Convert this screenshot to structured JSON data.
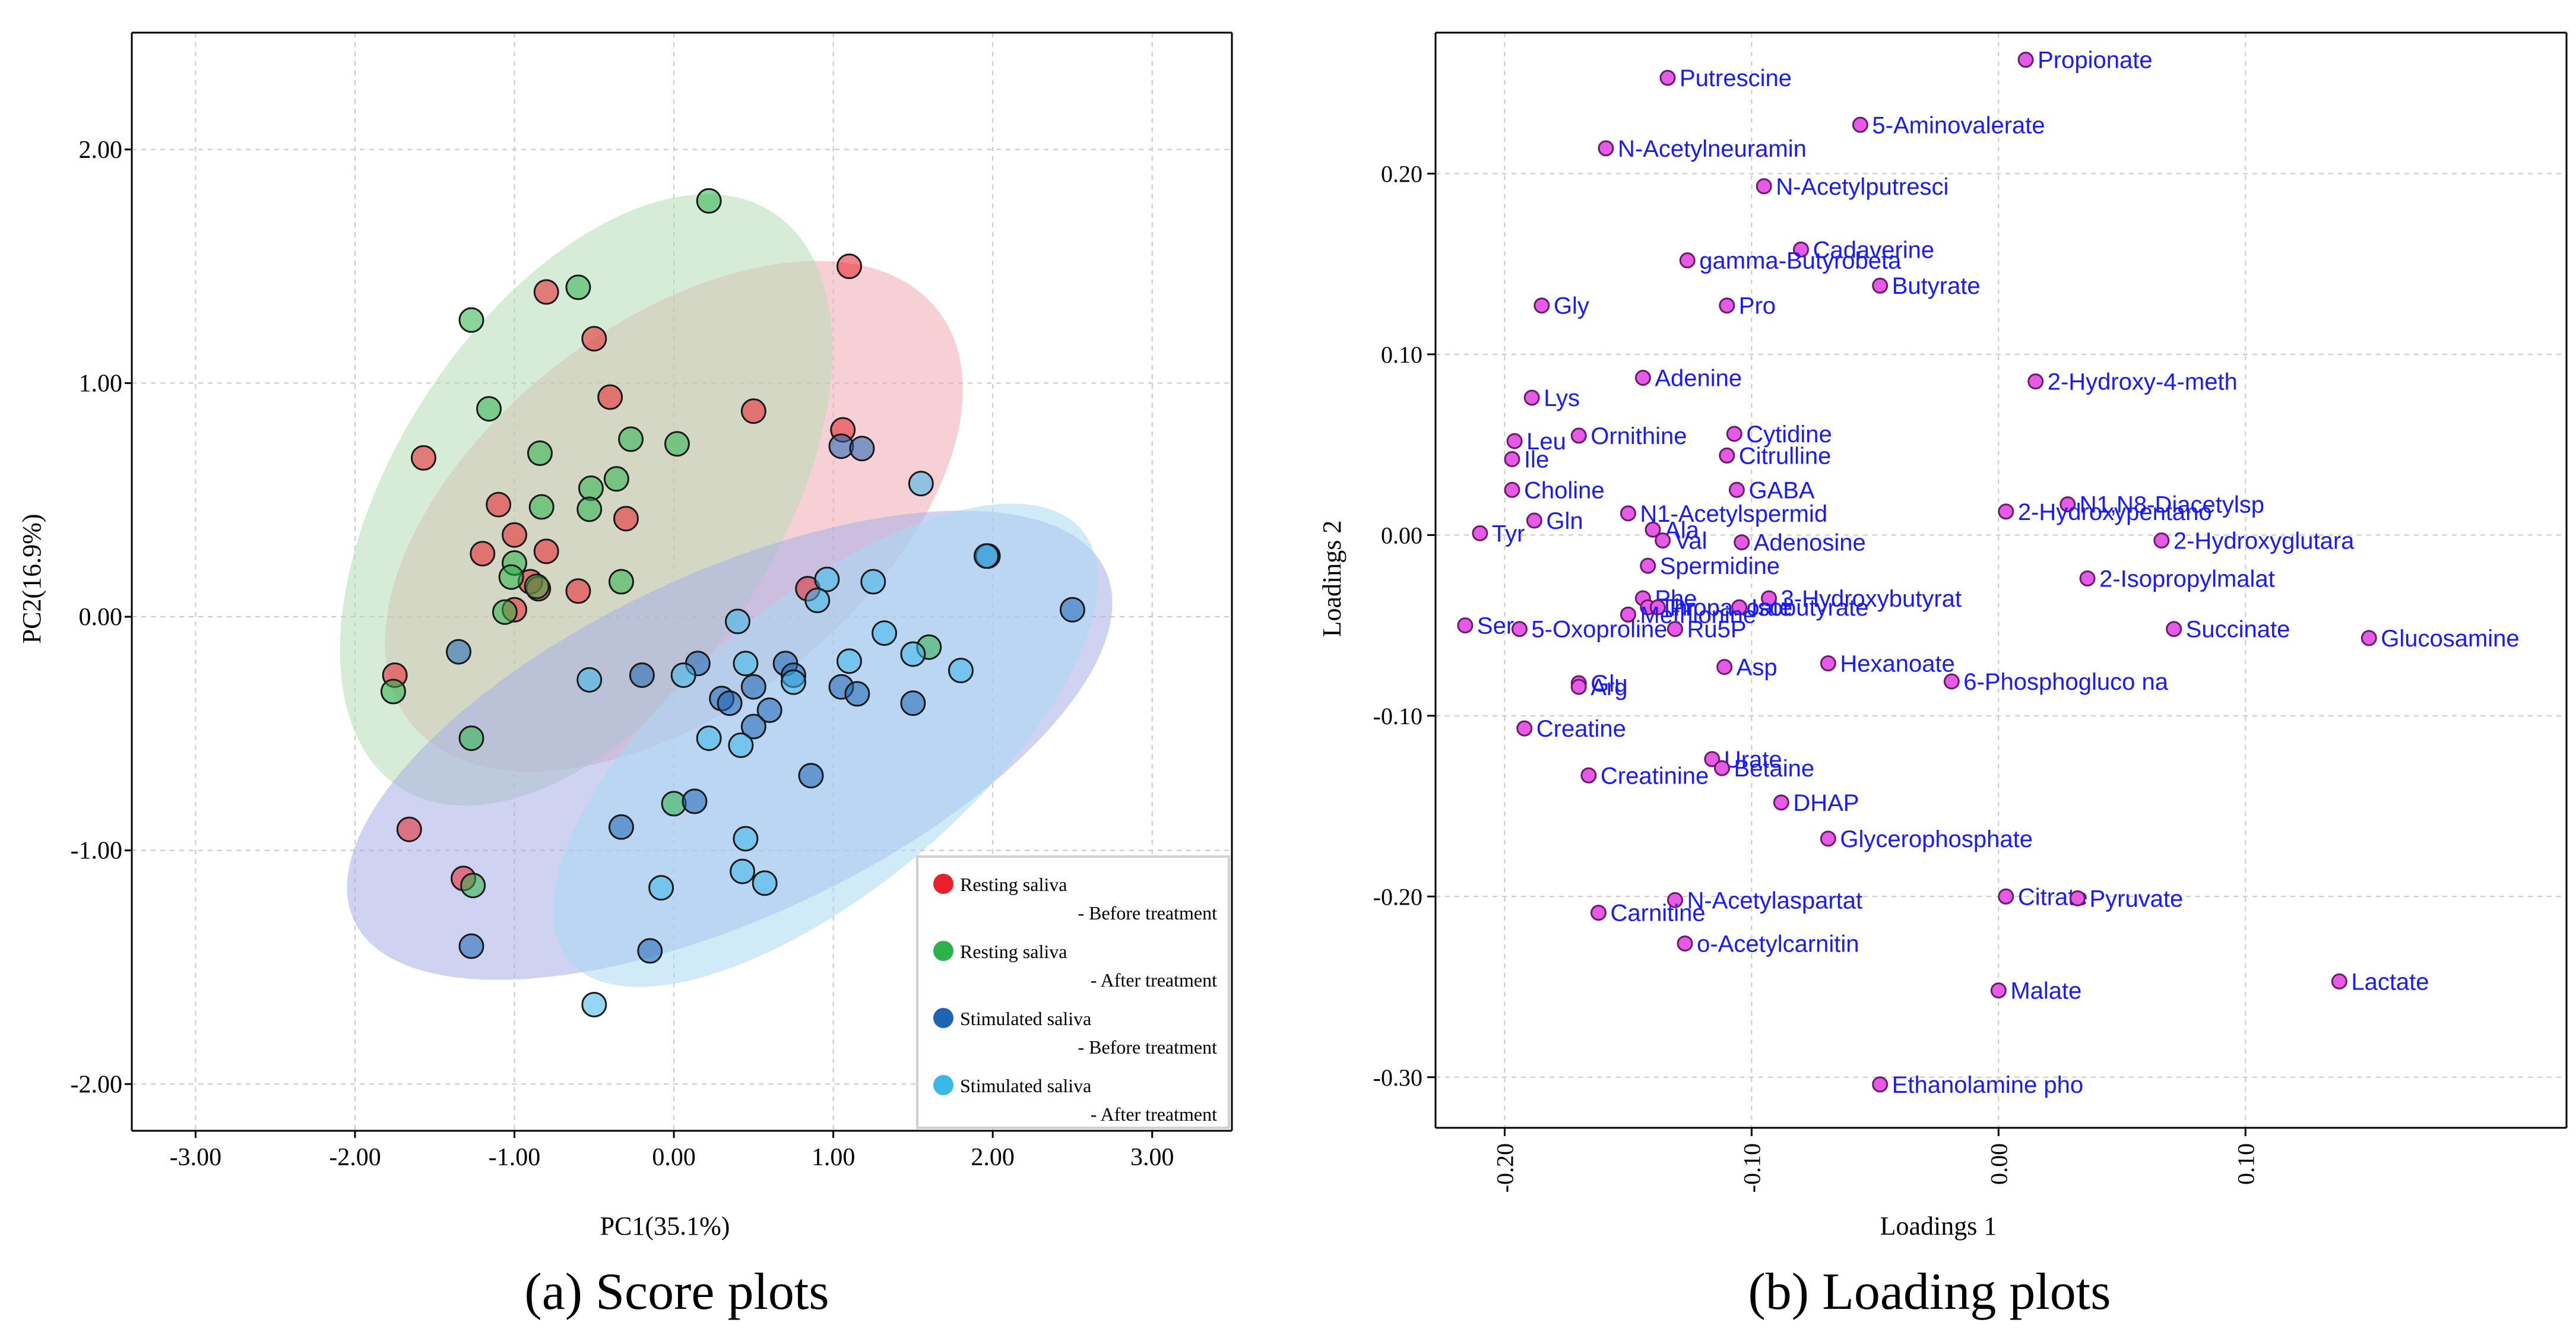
{
  "chart_data": [
    {
      "type": "scatter",
      "panel_caption": "(a)  Score plots",
      "xlabel": "PC1(35.1%)",
      "ylabel": "PC2(16.9%)",
      "xlim": [
        -3.4,
        3.5
      ],
      "ylim": [
        -2.2,
        2.5
      ],
      "x_ticks": [
        -3,
        -2,
        -1,
        0,
        1,
        2,
        3
      ],
      "x_tick_labels": [
        "-3.00",
        "-2.00",
        "-1.00",
        "0.00",
        "1.00",
        "2.00",
        "3.00"
      ],
      "y_ticks": [
        -2,
        -1,
        0,
        1,
        2
      ],
      "y_tick_labels": [
        "-2.00",
        "-1.00",
        "0.00",
        "1.00",
        "2.00"
      ],
      "grid": true,
      "legend_position": "bottom-right",
      "series": [
        {
          "name_line1": "Resting saliva",
          "name_line2": "- Before treatment",
          "color": "#e8202a",
          "ellipse_color": "#f1a9b4",
          "ellipse": {
            "cx": 0.0,
            "cy": 0.43,
            "rx": 2.1,
            "ry": 1.2,
            "angle_deg": 38
          },
          "points": [
            [
              1.1,
              1.5
            ],
            [
              -0.8,
              1.39
            ],
            [
              -0.5,
              1.19
            ],
            [
              -0.4,
              0.94
            ],
            [
              0.5,
              0.88
            ],
            [
              -1.57,
              0.68
            ],
            [
              1.06,
              0.8
            ],
            [
              -1.1,
              0.48
            ],
            [
              -0.3,
              0.42
            ],
            [
              -1.0,
              0.35
            ],
            [
              -1.2,
              0.27
            ],
            [
              -0.8,
              0.28
            ],
            [
              -0.9,
              0.15
            ],
            [
              -0.85,
              0.12
            ],
            [
              -0.6,
              0.11
            ],
            [
              -1.0,
              0.03
            ],
            [
              0.84,
              0.12
            ],
            [
              -1.75,
              -0.25
            ],
            [
              -1.66,
              -0.91
            ],
            [
              -1.32,
              -1.12
            ]
          ]
        },
        {
          "name_line1": "Resting saliva",
          "name_line2": "- After treatment",
          "color": "#2bb24a",
          "ellipse_color": "#b6dcb4",
          "ellipse": {
            "cx": -0.55,
            "cy": 0.5,
            "rx": 2.15,
            "ry": 1.2,
            "angle_deg": 57
          },
          "points": [
            [
              0.22,
              1.78
            ],
            [
              -0.6,
              1.41
            ],
            [
              -1.27,
              1.27
            ],
            [
              -1.16,
              0.89
            ],
            [
              -0.27,
              0.76
            ],
            [
              0.02,
              0.74
            ],
            [
              -0.84,
              0.7
            ],
            [
              -0.36,
              0.59
            ],
            [
              -0.52,
              0.55
            ],
            [
              -0.83,
              0.47
            ],
            [
              -0.53,
              0.46
            ],
            [
              -1.0,
              0.23
            ],
            [
              -1.02,
              0.17
            ],
            [
              -0.33,
              0.15
            ],
            [
              -0.86,
              0.13
            ],
            [
              -1.06,
              0.02
            ],
            [
              1.6,
              -0.13
            ],
            [
              -1.76,
              -0.32
            ],
            [
              -1.27,
              -0.52
            ],
            [
              0.0,
              -0.8
            ],
            [
              -1.26,
              -1.15
            ]
          ]
        },
        {
          "name_line1": "Stimulated saliva",
          "name_line2": "- Before treatment",
          "color": "#1f64b4",
          "ellipse_color": "#a7afe6",
          "ellipse": {
            "cx": 0.35,
            "cy": -0.55,
            "rx": 2.6,
            "ry": 1.08,
            "angle_deg": 25
          },
          "points": [
            [
              1.05,
              0.73
            ],
            [
              1.18,
              0.72
            ],
            [
              1.97,
              0.26
            ],
            [
              2.5,
              0.03
            ],
            [
              -1.35,
              -0.15
            ],
            [
              0.15,
              -0.2
            ],
            [
              -0.2,
              -0.25
            ],
            [
              0.7,
              -0.2
            ],
            [
              0.75,
              -0.25
            ],
            [
              0.5,
              -0.3
            ],
            [
              1.05,
              -0.3
            ],
            [
              1.15,
              -0.33
            ],
            [
              1.5,
              -0.37
            ],
            [
              0.3,
              -0.35
            ],
            [
              0.35,
              -0.37
            ],
            [
              0.6,
              -0.4
            ],
            [
              0.5,
              -0.47
            ],
            [
              0.86,
              -0.68
            ],
            [
              -0.33,
              -0.9
            ],
            [
              0.13,
              -0.79
            ],
            [
              -0.15,
              -1.43
            ],
            [
              -1.27,
              -1.41
            ]
          ]
        },
        {
          "name_line1": "Stimulated saliva",
          "name_line2": "- After treatment",
          "color": "#3cb7ea",
          "ellipse_color": "#a9d8f3",
          "ellipse": {
            "cx": 0.95,
            "cy": -0.55,
            "rx": 2.1,
            "ry": 0.9,
            "angle_deg": 40
          },
          "points": [
            [
              1.55,
              0.57
            ],
            [
              1.96,
              0.26
            ],
            [
              0.96,
              0.16
            ],
            [
              1.25,
              0.15
            ],
            [
              0.9,
              0.07
            ],
            [
              1.32,
              -0.07
            ],
            [
              0.4,
              -0.02
            ],
            [
              1.1,
              -0.19
            ],
            [
              1.5,
              -0.16
            ],
            [
              1.8,
              -0.23
            ],
            [
              0.45,
              -0.2
            ],
            [
              0.75,
              -0.28
            ],
            [
              0.06,
              -0.25
            ],
            [
              -0.53,
              -0.27
            ],
            [
              0.22,
              -0.52
            ],
            [
              0.42,
              -0.55
            ],
            [
              0.45,
              -0.95
            ],
            [
              0.43,
              -1.09
            ],
            [
              0.57,
              -1.14
            ],
            [
              -0.08,
              -1.16
            ],
            [
              -0.5,
              -1.66
            ]
          ]
        }
      ]
    },
    {
      "type": "scatter",
      "panel_caption": "(b)  Loading plots",
      "xlabel": "Loadings 1",
      "ylabel": "Loadings 2",
      "xlim": [
        -0.228,
        0.23
      ],
      "ylim": [
        -0.328,
        0.278
      ],
      "x_ticks": [
        -0.2,
        -0.1,
        0.0,
        0.1
      ],
      "x_tick_labels": [
        "-0.20",
        "-0.10",
        "0.00",
        "0.10"
      ],
      "y_ticks": [
        -0.3,
        -0.2,
        -0.1,
        0.0,
        0.1,
        0.2
      ],
      "y_tick_labels": [
        "-0.30",
        "-0.20",
        "-0.10",
        "0.00",
        "0.10",
        "0.20"
      ],
      "grid": true,
      "point_color": "#e65be6",
      "label_color": "#1a1aff",
      "points": [
        {
          "x": -0.134,
          "y": 0.253,
          "label": "Putrescine"
        },
        {
          "x": 0.011,
          "y": 0.263,
          "label": "Propionate"
        },
        {
          "x": -0.056,
          "y": 0.227,
          "label": "5-Aminovalerate"
        },
        {
          "x": -0.159,
          "y": 0.214,
          "label": "N-Acetylneuramin"
        },
        {
          "x": -0.095,
          "y": 0.193,
          "label": "N-Acetylputresci"
        },
        {
          "x": -0.08,
          "y": 0.158,
          "label": "Cadaverine"
        },
        {
          "x": -0.126,
          "y": 0.152,
          "label": "gamma-Butyrobeta"
        },
        {
          "x": -0.048,
          "y": 0.138,
          "label": "Butyrate"
        },
        {
          "x": -0.185,
          "y": 0.127,
          "label": "Gly"
        },
        {
          "x": -0.11,
          "y": 0.127,
          "label": "Pro"
        },
        {
          "x": -0.144,
          "y": 0.087,
          "label": "Adenine"
        },
        {
          "x": 0.015,
          "y": 0.085,
          "label": "2-Hydroxy-4-meth"
        },
        {
          "x": -0.189,
          "y": 0.076,
          "label": "Lys"
        },
        {
          "x": -0.196,
          "y": 0.052,
          "label": "Leu"
        },
        {
          "x": -0.17,
          "y": 0.055,
          "label": "Ornithine"
        },
        {
          "x": -0.107,
          "y": 0.056,
          "label": "Cytidine"
        },
        {
          "x": -0.197,
          "y": 0.042,
          "label": "Ile"
        },
        {
          "x": -0.11,
          "y": 0.044,
          "label": "Citrulline"
        },
        {
          "x": -0.197,
          "y": 0.025,
          "label": "Choline"
        },
        {
          "x": -0.106,
          "y": 0.025,
          "label": "GABA"
        },
        {
          "x": -0.15,
          "y": 0.012,
          "label": "N1-Acetylspermid"
        },
        {
          "x": 0.028,
          "y": 0.017,
          "label": "N1,N8-Diacetylsp"
        },
        {
          "x": 0.003,
          "y": 0.013,
          "label": "2-Hydroxypentano"
        },
        {
          "x": -0.188,
          "y": 0.008,
          "label": "Gln"
        },
        {
          "x": -0.14,
          "y": 0.003,
          "label": "Ala"
        },
        {
          "x": -0.21,
          "y": 0.001,
          "label": "Tyr"
        },
        {
          "x": -0.136,
          "y": -0.003,
          "label": "Val"
        },
        {
          "x": -0.104,
          "y": -0.004,
          "label": "Adenosine"
        },
        {
          "x": 0.066,
          "y": -0.003,
          "label": "2-Hydroxyglutara"
        },
        {
          "x": -0.142,
          "y": -0.017,
          "label": "Spermidine"
        },
        {
          "x": 0.036,
          "y": -0.024,
          "label": "2-Isopropylmalat"
        },
        {
          "x": -0.144,
          "y": -0.035,
          "label": "Phe"
        },
        {
          "x": -0.093,
          "y": -0.035,
          "label": "3-Hydroxybutyrat"
        },
        {
          "x": -0.142,
          "y": -0.04,
          "label": "Thr"
        },
        {
          "x": -0.138,
          "y": -0.04,
          "label": "Propanoate"
        },
        {
          "x": -0.105,
          "y": -0.04,
          "label": "Isobutyrate"
        },
        {
          "x": -0.15,
          "y": -0.044,
          "label": "Methionine"
        },
        {
          "x": -0.216,
          "y": -0.05,
          "label": "Ser"
        },
        {
          "x": -0.194,
          "y": -0.052,
          "label": "5-Oxoproline"
        },
        {
          "x": -0.131,
          "y": -0.052,
          "label": "Ru5P"
        },
        {
          "x": 0.071,
          "y": -0.052,
          "label": "Succinate"
        },
        {
          "x": 0.15,
          "y": -0.057,
          "label": "Glucosamine"
        },
        {
          "x": -0.111,
          "y": -0.073,
          "label": "Asp"
        },
        {
          "x": -0.069,
          "y": -0.071,
          "label": "Hexanoate"
        },
        {
          "x": -0.019,
          "y": -0.081,
          "label": "6-Phosphogluco na"
        },
        {
          "x": -0.17,
          "y": -0.082,
          "label": "Glu"
        },
        {
          "x": -0.17,
          "y": -0.084,
          "label": "Arg"
        },
        {
          "x": -0.192,
          "y": -0.107,
          "label": "Creatine"
        },
        {
          "x": -0.116,
          "y": -0.124,
          "label": "Urate"
        },
        {
          "x": -0.112,
          "y": -0.129,
          "label": "Betaine"
        },
        {
          "x": -0.166,
          "y": -0.133,
          "label": "Creatinine"
        },
        {
          "x": -0.088,
          "y": -0.148,
          "label": "DHAP"
        },
        {
          "x": -0.069,
          "y": -0.168,
          "label": "Glycerophosphate"
        },
        {
          "x": -0.131,
          "y": -0.202,
          "label": "N-Acetylaspartat"
        },
        {
          "x": 0.003,
          "y": -0.2,
          "label": "Citrate"
        },
        {
          "x": 0.032,
          "y": -0.201,
          "label": "Pyruvate"
        },
        {
          "x": -0.162,
          "y": -0.209,
          "label": "Carnitine"
        },
        {
          "x": -0.127,
          "y": -0.226,
          "label": "o-Acetylcarnitin"
        },
        {
          "x": 0.0,
          "y": -0.252,
          "label": "Malate"
        },
        {
          "x": 0.138,
          "y": -0.247,
          "label": "Lactate"
        },
        {
          "x": -0.048,
          "y": -0.304,
          "label": "Ethanolamine pho"
        }
      ]
    }
  ]
}
